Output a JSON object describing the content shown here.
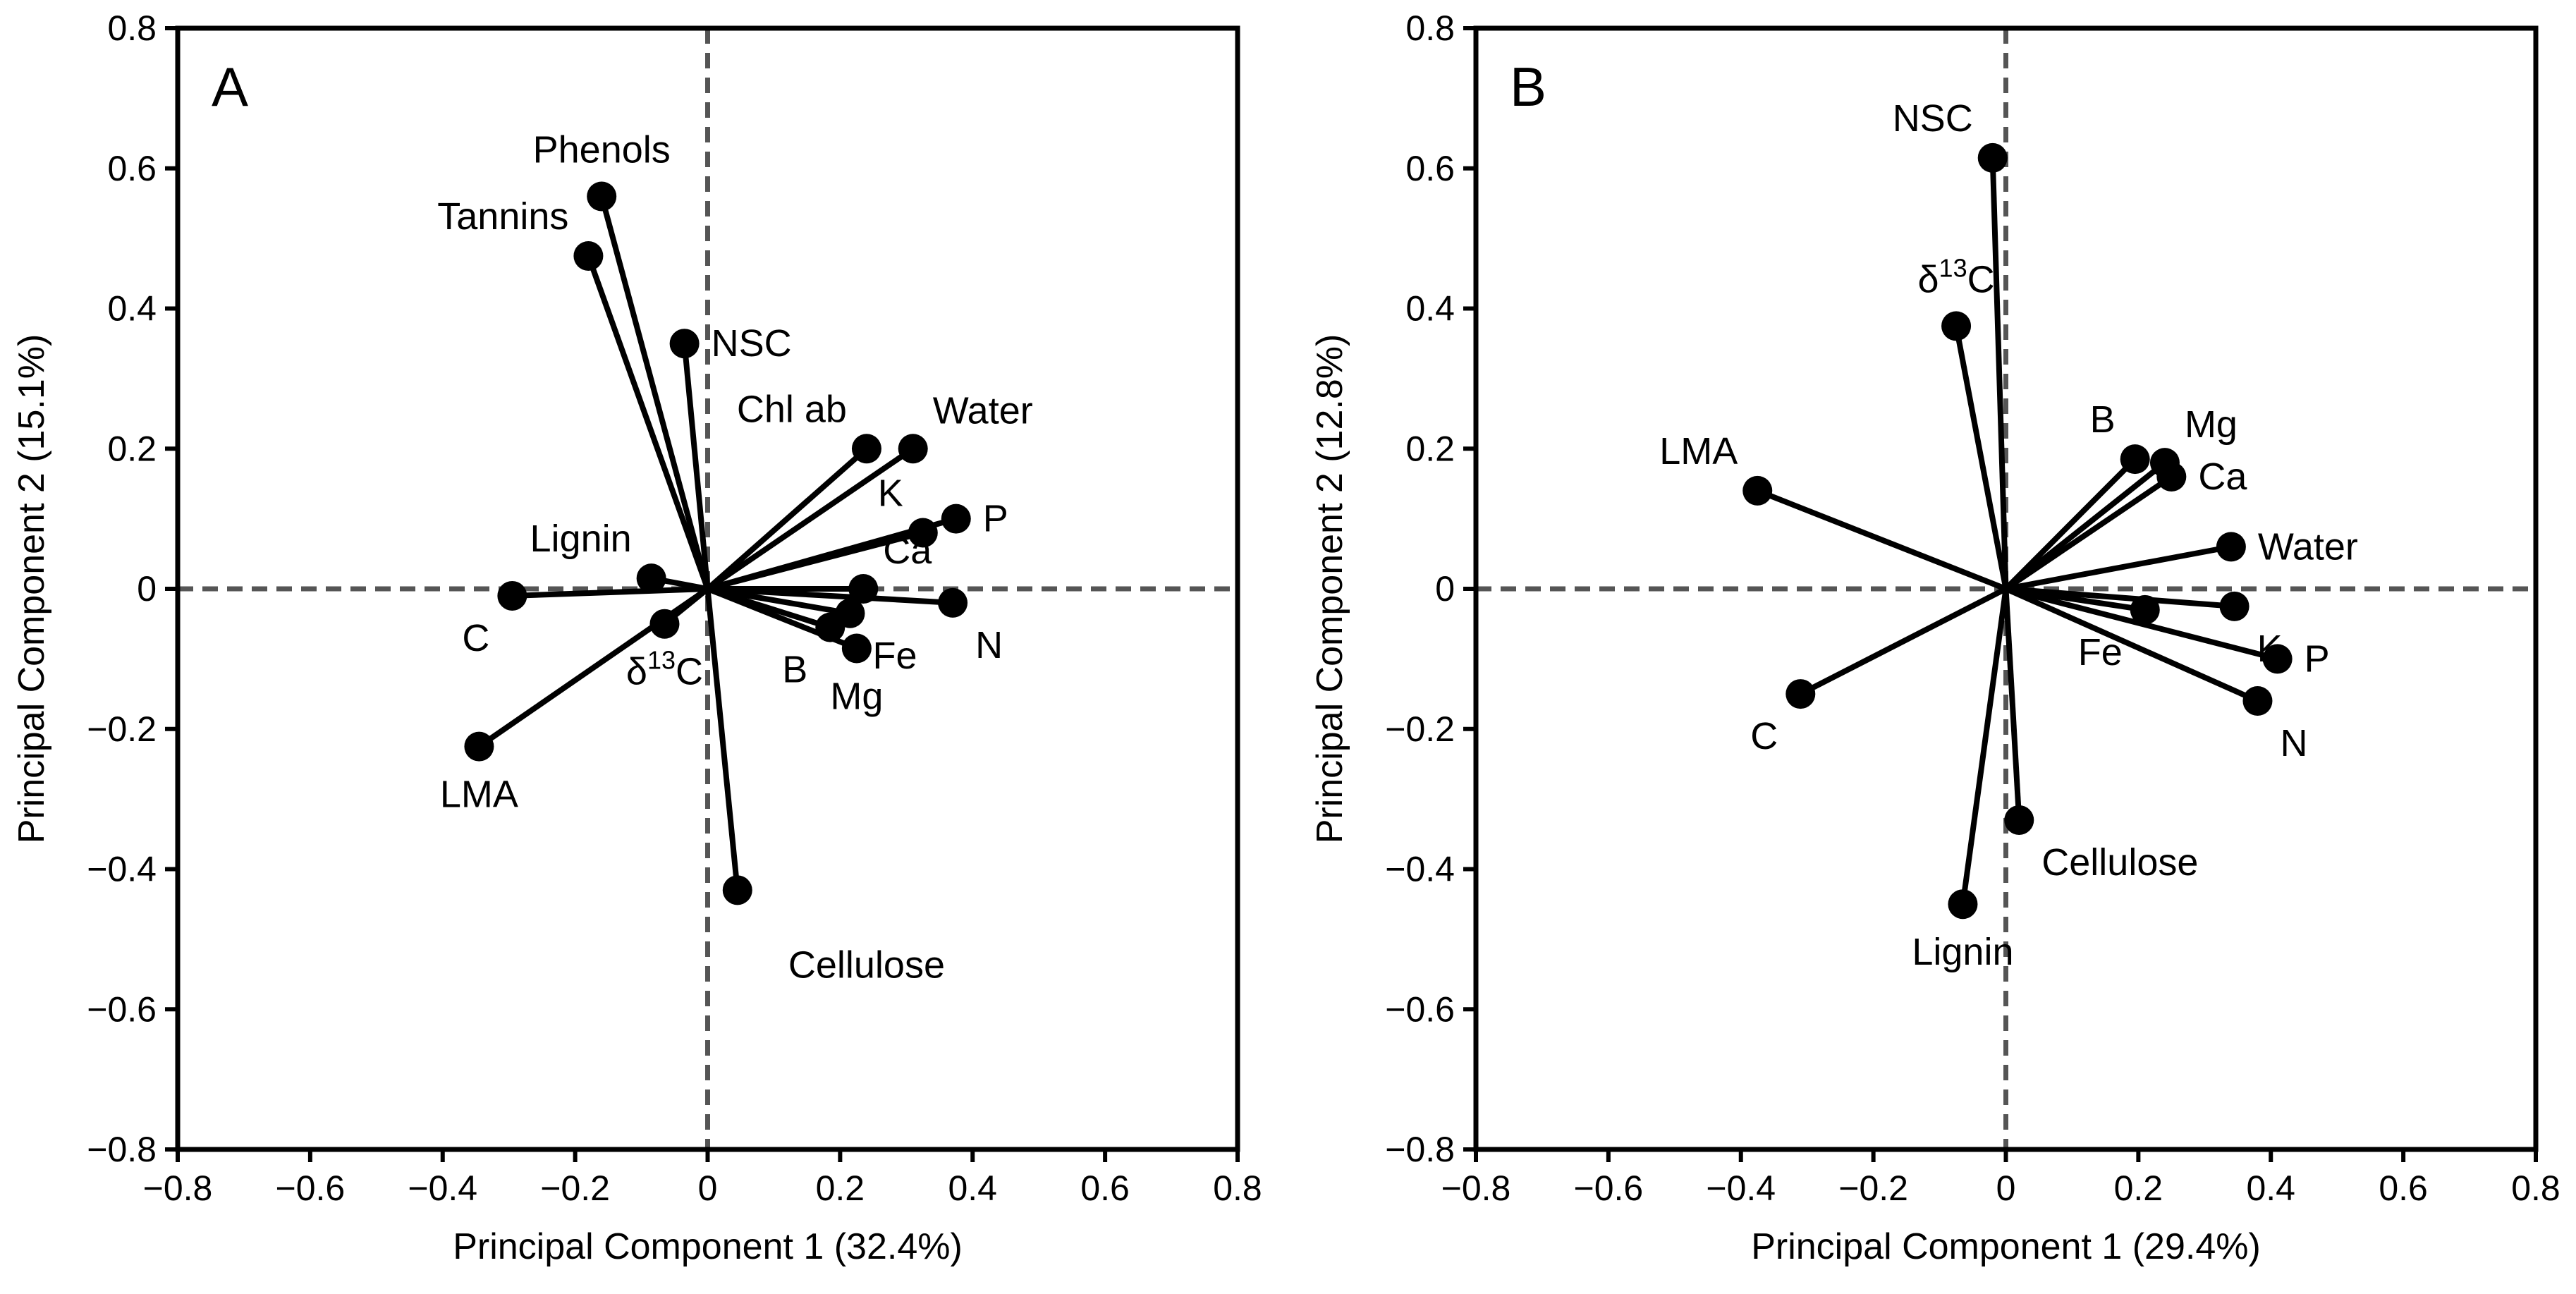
{
  "chart_data": [
    {
      "type": "scatter",
      "subtype": "pca-biplot",
      "panel_label": "A",
      "xlabel": "Principal Component 1 (32.4%)",
      "ylabel": "Principal Component 2 (15.1%)",
      "xlim": [
        -0.8,
        0.8
      ],
      "ylim": [
        -0.8,
        0.8
      ],
      "ticks": [
        -0.8,
        -0.6,
        -0.4,
        -0.2,
        0,
        0.2,
        0.4,
        0.6,
        0.8
      ],
      "tick_labels": [
        "−0.8",
        "−0.6",
        "−0.4",
        "−0.2",
        "0",
        "0.2",
        "0.4",
        "0.6",
        "0.8"
      ],
      "variables": [
        {
          "name": "Phenols",
          "x": -0.16,
          "y": 0.56,
          "label_pos": "top"
        },
        {
          "name": "Tannins",
          "x": -0.18,
          "y": 0.475,
          "label_pos": "top-left"
        },
        {
          "name": "NSC",
          "x": -0.035,
          "y": 0.35,
          "label_pos": "right"
        },
        {
          "name": "Chl ab",
          "x": 0.24,
          "y": 0.2,
          "label_pos": "top-left"
        },
        {
          "name": "Water",
          "x": 0.31,
          "y": 0.2,
          "label_pos": "top-right"
        },
        {
          "name": "K",
          "x": 0.325,
          "y": 0.08,
          "label_pos": "top-left"
        },
        {
          "name": "P",
          "x": 0.375,
          "y": 0.1,
          "label_pos": "right"
        },
        {
          "name": "Ca",
          "x": 0.235,
          "y": 0.0,
          "label_pos": "top-right"
        },
        {
          "name": "N",
          "x": 0.37,
          "y": -0.02,
          "label_pos": "bottom-right"
        },
        {
          "name": "Fe",
          "x": 0.215,
          "y": -0.035,
          "label_pos": "bottom-right"
        },
        {
          "name": "B",
          "x": 0.185,
          "y": -0.055,
          "label_pos": "bottom-left"
        },
        {
          "name": "Mg",
          "x": 0.225,
          "y": -0.085,
          "label_pos": "bottom"
        },
        {
          "name": "Lignin",
          "x": -0.085,
          "y": 0.015,
          "label_pos": "top-left"
        },
        {
          "name": "C",
          "x": -0.295,
          "y": -0.01,
          "label_pos": "bottom-left"
        },
        {
          "name": "δ",
          "sup": "13",
          "tail": "C",
          "x": -0.065,
          "y": -0.05,
          "label_pos": "bottom"
        },
        {
          "name": "LMA",
          "x": -0.345,
          "y": -0.225,
          "label_pos": "bottom"
        },
        {
          "name": "Cellulose",
          "x": 0.045,
          "y": -0.43,
          "label_x": 0.24,
          "label_y": -0.555,
          "label_pos": "custom"
        }
      ]
    },
    {
      "type": "scatter",
      "subtype": "pca-biplot",
      "panel_label": "B",
      "xlabel": "Principal Component 1 (29.4%)",
      "ylabel": "Principal Component 2 (12.8%)",
      "xlim": [
        -0.8,
        0.8
      ],
      "ylim": [
        -0.8,
        0.8
      ],
      "ticks": [
        -0.8,
        -0.6,
        -0.4,
        -0.2,
        0,
        0.2,
        0.4,
        0.6,
        0.8
      ],
      "tick_labels": [
        "−0.8",
        "−0.6",
        "−0.4",
        "−0.2",
        "0",
        "0.2",
        "0.4",
        "0.6",
        "0.8"
      ],
      "variables": [
        {
          "name": "NSC",
          "x": -0.02,
          "y": 0.615,
          "label_pos": "top-left"
        },
        {
          "name": "δ",
          "sup": "13",
          "tail": "C",
          "x": -0.075,
          "y": 0.375,
          "label_pos": "top"
        },
        {
          "name": "LMA",
          "x": -0.375,
          "y": 0.14,
          "label_pos": "top-left"
        },
        {
          "name": "B",
          "x": 0.195,
          "y": 0.185,
          "label_pos": "top-left"
        },
        {
          "name": "Mg",
          "x": 0.24,
          "y": 0.18,
          "label_pos": "top-right"
        },
        {
          "name": "Ca",
          "x": 0.25,
          "y": 0.16,
          "label_pos": "right"
        },
        {
          "name": "Water",
          "x": 0.34,
          "y": 0.06,
          "label_pos": "right"
        },
        {
          "name": "K",
          "x": 0.345,
          "y": -0.025,
          "label_pos": "bottom-right"
        },
        {
          "name": "Fe",
          "x": 0.21,
          "y": -0.03,
          "label_pos": "bottom-left"
        },
        {
          "name": "P",
          "x": 0.41,
          "y": -0.1,
          "label_pos": "right"
        },
        {
          "name": "N",
          "x": 0.38,
          "y": -0.16,
          "label_pos": "bottom-right"
        },
        {
          "name": "C",
          "x": -0.31,
          "y": -0.15,
          "label_pos": "bottom-left"
        },
        {
          "name": "Cellulose",
          "x": 0.02,
          "y": -0.33,
          "label_pos": "bottom-right"
        },
        {
          "name": "Lignin",
          "x": -0.065,
          "y": -0.45,
          "label_pos": "bottom"
        }
      ]
    }
  ]
}
